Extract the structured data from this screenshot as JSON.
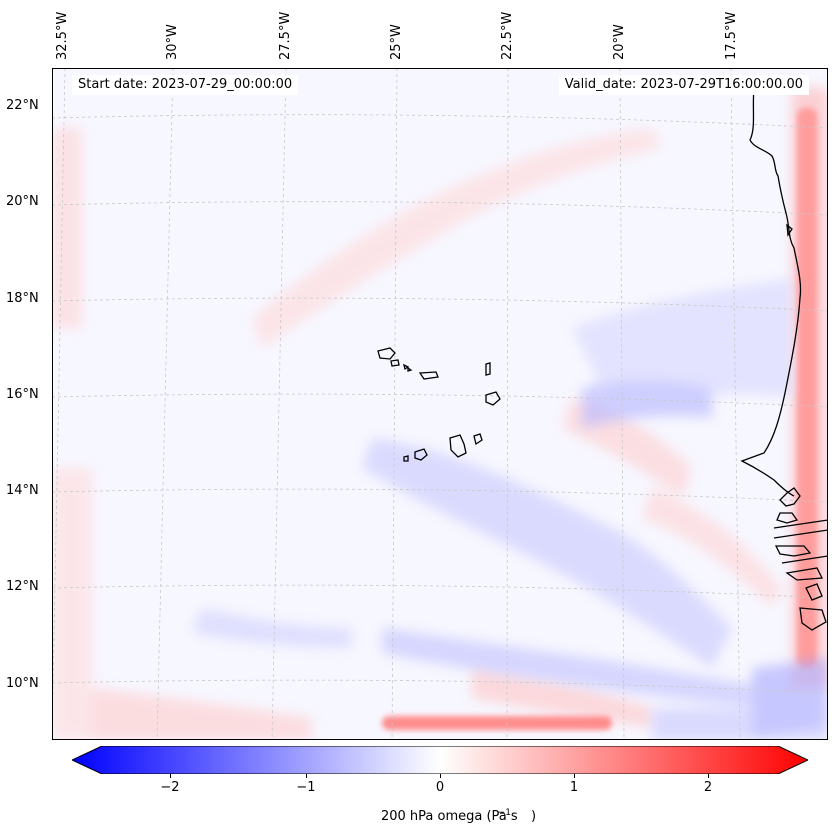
{
  "map": {
    "start_date": "Start date: 2023-07-29_00:00:00",
    "valid_date": "Valid_date: 2023-07-29T16:00:00.00",
    "lon_labels": [
      "32.5°W",
      "30°W",
      "27.5°W",
      "25°W",
      "22.5°W",
      "20°W",
      "17.5°W"
    ],
    "lat_labels": [
      "22°N",
      "20°N",
      "18°N",
      "16°N",
      "14°N",
      "12°N",
      "10°N"
    ],
    "variable": "200 hPa omega",
    "colorbar": {
      "label_prefix": "200 hPa omega (Pa s",
      "label_exp": "−1",
      "label_suffix": ")",
      "ticks": [
        "−2",
        "−1",
        "0",
        "1",
        "2"
      ],
      "range": [
        -2.75,
        2.75
      ],
      "cmap": "bwr",
      "extend": "both",
      "colors": {
        "min": "#0000ff",
        "mid": "#ffffff",
        "max": "#ff0000"
      }
    }
  }
}
